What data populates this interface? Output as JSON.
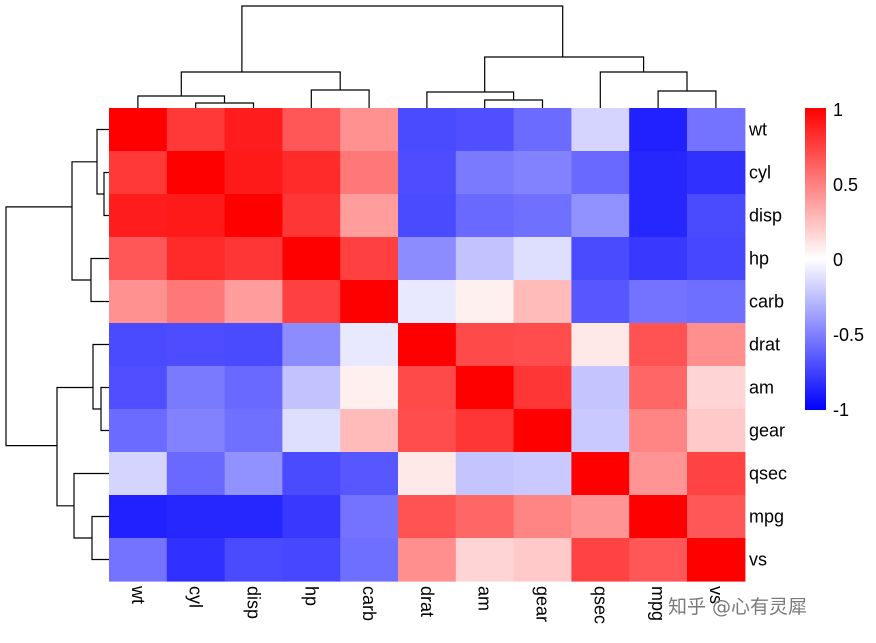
{
  "chart_data": {
    "type": "heatmap",
    "title": "",
    "row_labels": [
      "wt",
      "cyl",
      "disp",
      "hp",
      "carb",
      "drat",
      "am",
      "gear",
      "qsec",
      "mpg",
      "vs"
    ],
    "col_labels": [
      "wt",
      "cyl",
      "disp",
      "hp",
      "carb",
      "drat",
      "am",
      "gear",
      "qsec",
      "mpg",
      "vs"
    ],
    "values": [
      [
        1.0,
        0.78,
        0.89,
        0.66,
        0.43,
        -0.71,
        -0.69,
        -0.58,
        -0.17,
        -0.87,
        -0.55
      ],
      [
        0.78,
        1.0,
        0.9,
        0.83,
        0.53,
        -0.7,
        -0.52,
        -0.49,
        -0.59,
        -0.85,
        -0.81
      ],
      [
        0.89,
        0.9,
        1.0,
        0.79,
        0.39,
        -0.71,
        -0.59,
        -0.56,
        -0.43,
        -0.85,
        -0.71
      ],
      [
        0.66,
        0.83,
        0.79,
        1.0,
        0.75,
        -0.45,
        -0.24,
        -0.13,
        -0.71,
        -0.78,
        -0.72
      ],
      [
        0.43,
        0.53,
        0.39,
        0.75,
        1.0,
        -0.09,
        0.06,
        0.27,
        -0.66,
        -0.55,
        -0.57
      ],
      [
        -0.71,
        -0.7,
        -0.71,
        -0.45,
        -0.09,
        1.0,
        0.71,
        0.7,
        0.09,
        0.68,
        0.44
      ],
      [
        -0.69,
        -0.52,
        -0.59,
        -0.24,
        0.06,
        0.71,
        1.0,
        0.79,
        -0.23,
        0.6,
        0.17
      ],
      [
        -0.58,
        -0.49,
        -0.56,
        -0.13,
        0.27,
        0.7,
        0.79,
        1.0,
        -0.21,
        0.48,
        0.21
      ],
      [
        -0.17,
        -0.59,
        -0.43,
        -0.71,
        -0.66,
        0.09,
        -0.23,
        -0.21,
        1.0,
        0.42,
        0.74
      ],
      [
        -0.87,
        -0.85,
        -0.85,
        -0.78,
        -0.55,
        0.68,
        0.6,
        0.48,
        0.42,
        1.0,
        0.66
      ],
      [
        -0.55,
        -0.81,
        -0.71,
        -0.72,
        -0.57,
        0.44,
        0.17,
        0.21,
        0.74,
        0.66,
        1.0
      ]
    ],
    "value_range": [
      -1,
      1
    ],
    "colorscale": {
      "low": "#0000FF",
      "mid": "#FFFFFF",
      "high": "#FF0000"
    },
    "legend": {
      "position": "right",
      "ticks": [
        1,
        0.5,
        0,
        -0.5,
        -1
      ],
      "tick_labels": [
        "1",
        "0.5",
        "0",
        "-0.5",
        "-1"
      ]
    },
    "row_dendrogram": true,
    "col_dendrogram": true
  },
  "watermark": "知乎 @心有灵犀"
}
